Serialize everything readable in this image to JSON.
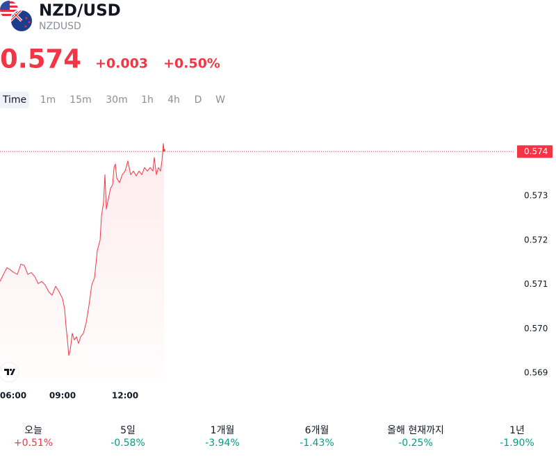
{
  "header": {
    "title": "NZD/USD",
    "symbol": "NZDUSD",
    "price": "0.574",
    "change": "+0.003",
    "change_percent": "+0.50%"
  },
  "intervals": [
    "Time",
    "1m",
    "15m",
    "30m",
    "1h",
    "4h",
    "D",
    "W"
  ],
  "chart_data": {
    "type": "area",
    "color": "#f23645",
    "x": [
      6,
      6.167,
      6.333,
      6.5,
      6.667,
      6.833,
      7,
      7.167,
      7.333,
      7.5,
      7.667,
      7.833,
      8,
      8.167,
      8.333,
      8.5,
      8.667,
      8.833,
      9,
      9.1,
      9.167,
      9.233,
      9.3,
      9.367,
      9.467,
      9.567,
      9.667,
      9.767,
      9.867,
      10,
      10.133,
      10.267,
      10.4,
      10.533,
      10.667,
      10.8,
      10.867,
      10.967,
      11.033,
      11.1,
      11.2,
      11.3,
      11.4,
      11.467,
      11.533,
      11.6,
      11.733,
      11.867,
      12,
      12.133,
      12.267,
      12.4,
      12.533,
      12.667,
      12.8,
      12.933,
      13.067,
      13.2,
      13.333,
      13.4,
      13.5,
      13.6,
      13.7,
      13.767,
      13.833,
      13.867
    ],
    "values": [
      0.57107,
      0.57123,
      0.57138,
      0.57133,
      0.57127,
      0.57123,
      0.57146,
      0.57143,
      0.57123,
      0.57127,
      0.57118,
      0.57102,
      0.57107,
      0.57099,
      0.57084,
      0.57076,
      0.57096,
      0.57084,
      0.57068,
      0.57045,
      0.57006,
      0.56975,
      0.5694,
      0.56951,
      0.5699,
      0.56975,
      0.56982,
      0.56967,
      0.56982,
      0.5699,
      0.57014,
      0.57053,
      0.57099,
      0.57115,
      0.57177,
      0.572,
      0.57255,
      0.57286,
      0.57348,
      0.5727,
      0.57294,
      0.57317,
      0.57325,
      0.57364,
      0.57372,
      0.5734,
      0.5733,
      0.57348,
      0.57356,
      0.57379,
      0.57348,
      0.57356,
      0.57345,
      0.57356,
      0.57348,
      0.57364,
      0.57356,
      0.57364,
      0.57356,
      0.57387,
      0.57348,
      0.57364,
      0.57356,
      0.57379,
      0.57418,
      0.57403
    ],
    "price_line": 0.574,
    "xlim": [
      6,
      30.667
    ],
    "ylim": [
      0.5688,
      0.5746
    ],
    "xticks": [
      {
        "value": 6,
        "label": "06:00"
      },
      {
        "value": 9,
        "label": "09:00"
      },
      {
        "value": 12,
        "label": "12:00"
      }
    ],
    "yticks": [
      0.569,
      {
        "value": 0.57,
        "label": "0.570"
      },
      0.571,
      0.572,
      0.573
    ]
  },
  "performance": [
    {
      "label": "오늘",
      "value": "+0.51%",
      "color": "#f23645"
    },
    {
      "label": "5일",
      "value": "-0.58%",
      "color": "#089981"
    },
    {
      "label": "1개월",
      "value": "-3.94%",
      "color": "#089981"
    },
    {
      "label": "6개월",
      "value": "-1.43%",
      "color": "#089981"
    },
    {
      "label": "올해 현재까지",
      "value": "-0.25%",
      "color": "#089981"
    },
    {
      "label": "1년",
      "value": "-1.90%",
      "color": "#089981"
    }
  ]
}
